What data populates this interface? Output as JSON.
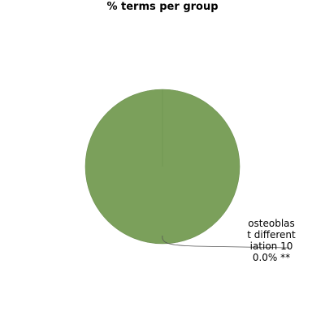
{
  "chart_data": {
    "type": "pie",
    "title": "% terms per group",
    "slices": [
      {
        "label": "osteoblast differentiation 100.0% **",
        "value": 100.0,
        "color": "#7ba05b"
      }
    ]
  }
}
